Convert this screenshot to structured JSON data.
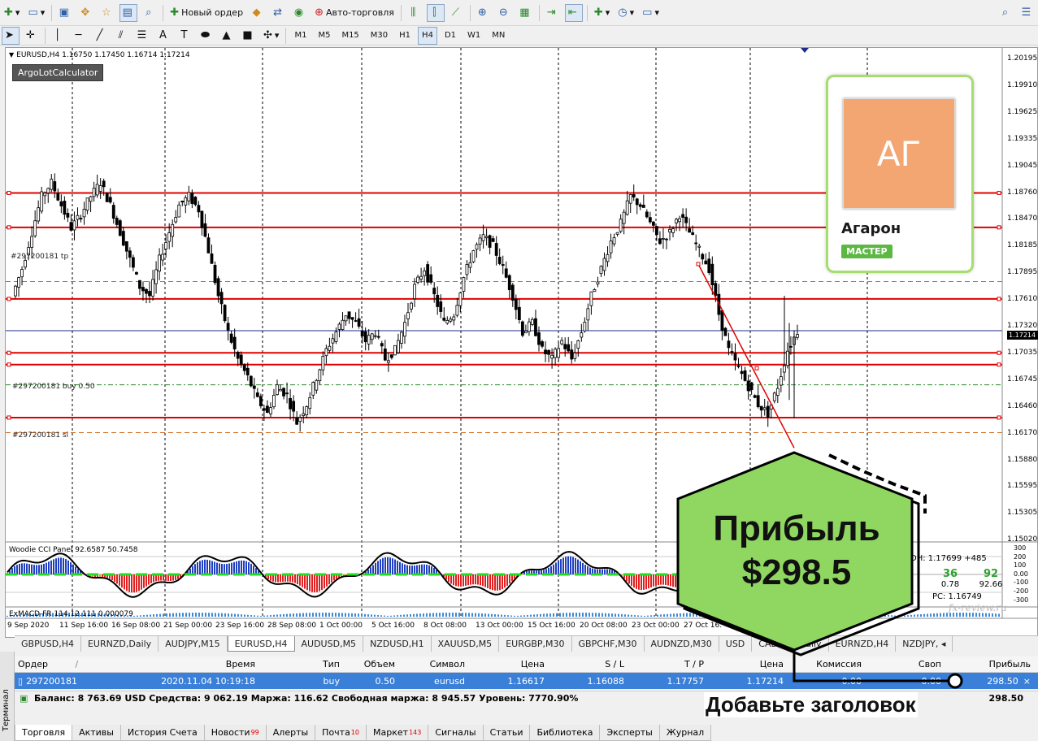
{
  "toolbar": {
    "new_order_label": "Новый ордер",
    "autotrading_label": "Авто-торговля",
    "timeframes": [
      "M1",
      "M5",
      "M15",
      "M30",
      "H1",
      "H4",
      "D1",
      "W1",
      "MN"
    ],
    "active_timeframe": "H4"
  },
  "chart": {
    "header": "EURUSD,H4  1.16750 1.17450 1.16714 1.17214",
    "ea_label": "ArgoLotCalculator",
    "tp_tag": "#297200181 tp",
    "buy_tag": "#297200181 buy 0.50",
    "sl_tag": "#297200181 sl",
    "current_price_label": "1.17214",
    "price_axis": [
      "1.20195",
      "1.19910",
      "1.19625",
      "1.19335",
      "1.19045",
      "1.18760",
      "1.18470",
      "1.18185",
      "1.17895",
      "1.17610",
      "1.17320",
      "1.17035",
      "1.16745",
      "1.16460",
      "1.16170",
      "1.15880",
      "1.15595",
      "1.15305",
      "1.15020"
    ],
    "time_axis": [
      "9 Sep 2020",
      "11 Sep 16:00",
      "16 Sep 08:00",
      "21 Sep 00:00",
      "23 Sep 16:00",
      "28 Sep 08:00",
      "1 Oct 00:00",
      "5 Oct 16:00",
      "8 Oct 08:00",
      "13 Oct 00:00",
      "15 Oct 16:00",
      "20 Oct 08:00",
      "23 Oct 00:00",
      "27 Oct 16:"
    ],
    "cci_label": "Woodie CCI Panel 92.6587 50.7458",
    "macd_label": "ExMACD-FR 114.12.111 0.000079",
    "cci_axis": [
      "300",
      "200",
      "100",
      "0.00",
      "-100",
      "-200",
      "-300"
    ],
    "dh_label": "DH: 1.17699 +485",
    "cci_value1": "36",
    "cci_value1_sub": "0.78",
    "cci_value2": "92",
    "cci_value2_sub": "92.66",
    "pc_label": "PC: 1.16749",
    "watermark": "fx-review.ru"
  },
  "chart_data": {
    "type": "candlestick",
    "symbol": "EURUSD",
    "timeframe": "H4",
    "ohlc_last": {
      "open": 1.1675,
      "high": 1.1745,
      "low": 1.16714,
      "close": 1.17214
    },
    "ylim": [
      1.149,
      1.203
    ],
    "horizontal_levels": [
      1.18735,
      1.18355,
      1.17565,
      1.1697,
      1.1684,
      1.16255
    ],
    "order_levels": {
      "tp": 1.17757,
      "buy": 1.16617,
      "sl": 1.16088
    },
    "current_price": 1.17214,
    "trend_line": {
      "from_price": 1.1795,
      "to_price": 1.1592
    },
    "close_path": [
      1.176,
      1.179,
      1.183,
      1.187,
      1.1885,
      1.186,
      1.1835,
      1.185,
      1.187,
      1.1885,
      1.186,
      1.183,
      1.18,
      1.177,
      1.176,
      1.18,
      1.183,
      1.186,
      1.187,
      1.1855,
      1.181,
      1.176,
      1.172,
      1.169,
      1.167,
      1.1645,
      1.163,
      1.166,
      1.165,
      1.162,
      1.164,
      1.167,
      1.17,
      1.172,
      1.174,
      1.173,
      1.171,
      1.172,
      1.169,
      1.17,
      1.173,
      1.177,
      1.179,
      1.176,
      1.173,
      1.174,
      1.178,
      1.181,
      1.1825,
      1.1815,
      1.179,
      1.176,
      1.172,
      1.173,
      1.17,
      1.169,
      1.171,
      1.169,
      1.172,
      1.176,
      1.179,
      1.182,
      1.184,
      1.187,
      1.186,
      1.184,
      1.182,
      1.183,
      1.185,
      1.183,
      1.181,
      1.179,
      1.174,
      1.17,
      1.168,
      1.166,
      1.164,
      1.163,
      1.166,
      1.17,
      1.1721
    ]
  },
  "profile": {
    "initials": "АГ",
    "name": "Агарон",
    "badge": "МАСТЕР"
  },
  "overlay": {
    "title": "Прибыль",
    "value": "$298.5",
    "heading": "Добавьте заголовок"
  },
  "symbol_tabs": [
    "GBPUSD,H4",
    "EURNZD,Daily",
    "AUDJPY,M15",
    "EURUSD,H4",
    "AUDUSD,M5",
    "NZDUSD,H1",
    "XAUUSD,M5",
    "EURGBP,M30",
    "GBPCHF,M30",
    "AUDNZD,M30",
    "USD",
    "CADCHF,Daily",
    "EURNZD,H4",
    "NZDJPY, ◂"
  ],
  "active_symbol_tab": "EURUSD,H4",
  "terminal": {
    "side_label": "Терминал",
    "columns": [
      "Ордер",
      "Время",
      "Тип",
      "Объем",
      "Символ",
      "Цена",
      "S / L",
      "T / P",
      "Цена",
      "Комиссия",
      "Своп",
      "Прибыль"
    ],
    "sort_mark": "/",
    "order": {
      "id": "297200181",
      "time": "2020.11.04 10:19:18",
      "type": "buy",
      "volume": "0.50",
      "symbol": "eurusd",
      "price": "1.16617",
      "sl": "1.16088",
      "tp": "1.17757",
      "current": "1.17214",
      "commission": "0.00",
      "swap": "0.00",
      "profit": "298.50"
    },
    "balance_text": "Баланс: 8 763.69 USD  Средства: 9 062.19  Маржа: 116.62  Свободная маржа: 8 945.57  Уровень: 7770.90%",
    "balance_profit": "298.50",
    "tabs": [
      {
        "label": "Торговля",
        "badge": ""
      },
      {
        "label": "Активы",
        "badge": ""
      },
      {
        "label": "История Счета",
        "badge": ""
      },
      {
        "label": "Новости",
        "badge": "99"
      },
      {
        "label": "Алерты",
        "badge": ""
      },
      {
        "label": "Почта",
        "badge": "10"
      },
      {
        "label": "Маркет",
        "badge": "143"
      },
      {
        "label": "Сигналы",
        "badge": ""
      },
      {
        "label": "Статьи",
        "badge": ""
      },
      {
        "label": "Библиотека",
        "badge": ""
      },
      {
        "label": "Эксперты",
        "badge": ""
      },
      {
        "label": "Журнал",
        "badge": ""
      }
    ]
  },
  "colors": {
    "level_line": "#e00000",
    "candle": "#000000",
    "card_border": "#a6dd6e",
    "hex_fill": "#8fd761",
    "selected_row": "#3a7fd8"
  }
}
